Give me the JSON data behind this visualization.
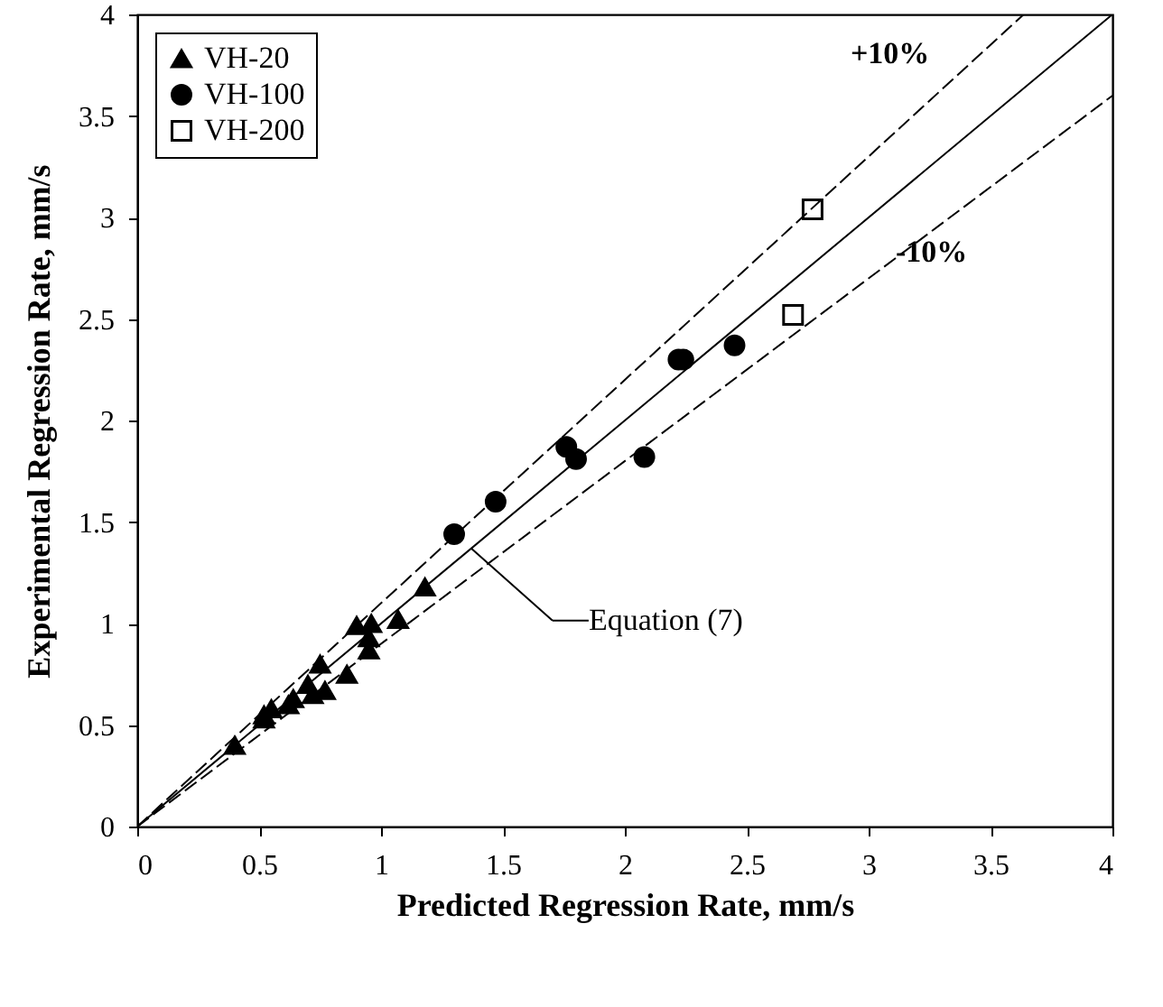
{
  "chart_data": {
    "type": "scatter",
    "xlabel": "Predicted Regression Rate, mm/s",
    "ylabel": "Experimental Regression Rate, mm/s",
    "xlim": [
      0,
      4
    ],
    "ylim": [
      0,
      4
    ],
    "xticks": [
      0,
      0.5,
      1,
      1.5,
      2,
      2.5,
      3,
      3.5,
      4
    ],
    "yticks": [
      0,
      0.5,
      1,
      1.5,
      2,
      2.5,
      3,
      3.5,
      4
    ],
    "grid": false,
    "legend": "top left",
    "series": [
      {
        "name": "VH-20",
        "type": "scatter",
        "marker": "triangle",
        "color": "#000000",
        "x": [
          0.4,
          0.52,
          0.55,
          0.52,
          0.62,
          0.64,
          0.7,
          0.72,
          0.75,
          0.77,
          0.86,
          0.9,
          0.95,
          0.96,
          0.95,
          1.07,
          1.18
        ],
        "values": [
          0.4,
          0.55,
          0.58,
          0.53,
          0.6,
          0.63,
          0.7,
          0.65,
          0.8,
          0.67,
          0.75,
          0.99,
          0.87,
          1.0,
          0.93,
          1.02,
          1.18
        ]
      },
      {
        "name": "VH-100",
        "type": "scatter",
        "marker": "circle",
        "color": "#000000",
        "x": [
          1.3,
          1.47,
          1.76,
          1.8,
          2.08,
          2.22,
          2.24,
          2.45
        ],
        "values": [
          1.44,
          1.6,
          1.87,
          1.81,
          1.82,
          2.3,
          2.3,
          2.37
        ]
      },
      {
        "name": "VH-200",
        "type": "scatter",
        "marker": "square",
        "color": "#000000",
        "x": [
          2.77,
          2.69
        ],
        "values": [
          3.04,
          2.52
        ]
      },
      {
        "type": "line",
        "line_style": "solid",
        "color": "#000000",
        "x": [
          0,
          4
        ],
        "values": [
          0,
          4
        ]
      },
      {
        "type": "line",
        "line_style": "dashed",
        "color": "#000000",
        "x": [
          0,
          3.636
        ],
        "values": [
          0,
          4
        ]
      },
      {
        "type": "line",
        "line_style": "dashed",
        "color": "#000000",
        "x": [
          0,
          4
        ],
        "values": [
          0,
          3.6
        ]
      }
    ],
    "annotations": [
      "+10%",
      "-10%",
      {
        "text": "Equation (7)",
        "x": 1.37,
        "y": 1.37
      }
    ]
  }
}
